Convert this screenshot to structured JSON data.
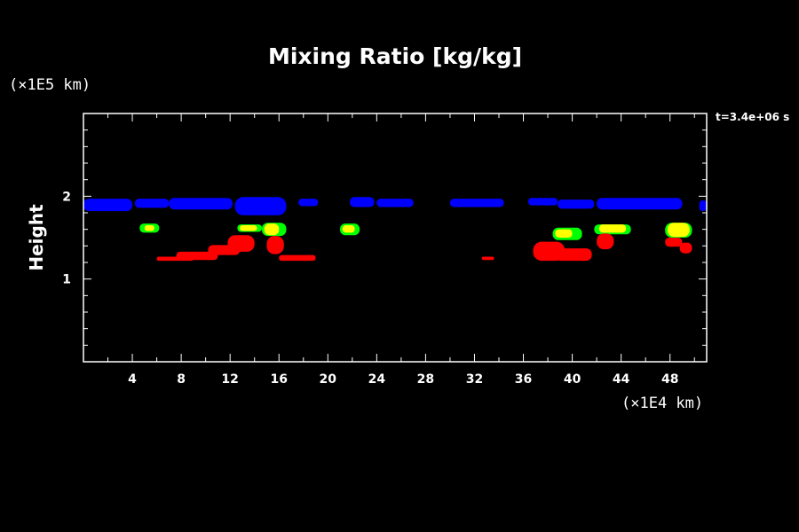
{
  "chart_data": {
    "type": "heatmap",
    "title": "Mixing Ratio [kg/kg]",
    "ylabel": "Height",
    "y_unit_label": "(×1E5 km)",
    "x_unit_label": "(×1E4 km)",
    "time_label": "t=3.4e+06 s",
    "xlim": [
      0,
      51
    ],
    "ylim": [
      0,
      3
    ],
    "x_ticks": [
      4,
      8,
      12,
      16,
      20,
      24,
      28,
      32,
      36,
      40,
      44,
      48
    ],
    "x_tick_labels": [
      "4",
      "8",
      "12",
      "16",
      "20",
      "24",
      "28",
      "32",
      "36",
      "40",
      "44",
      "48"
    ],
    "y_ticks": [
      1,
      2
    ],
    "y_tick_labels": [
      "1",
      "2"
    ],
    "colors": {
      "blue": "#0000ff",
      "green": "#00ff00",
      "yellow": "#ffff00",
      "red": "#ff0000",
      "background": "#000000",
      "axes": "#ffffff"
    },
    "regions": [
      {
        "color": "blue",
        "x": [
          0.0,
          4.0
        ],
        "y": [
          1.82,
          1.97
        ]
      },
      {
        "color": "blue",
        "x": [
          4.2,
          7.0
        ],
        "y": [
          1.86,
          1.97
        ]
      },
      {
        "color": "blue",
        "x": [
          7.0,
          12.2
        ],
        "y": [
          1.84,
          1.98
        ]
      },
      {
        "color": "blue",
        "x": [
          12.4,
          16.6
        ],
        "y": [
          1.77,
          1.99
        ]
      },
      {
        "color": "blue",
        "x": [
          17.6,
          19.2
        ],
        "y": [
          1.88,
          1.97
        ]
      },
      {
        "color": "blue",
        "x": [
          21.8,
          23.8
        ],
        "y": [
          1.87,
          1.99
        ]
      },
      {
        "color": "blue",
        "x": [
          24.0,
          27.0
        ],
        "y": [
          1.87,
          1.97
        ]
      },
      {
        "color": "blue",
        "x": [
          30.0,
          34.4
        ],
        "y": [
          1.87,
          1.97
        ]
      },
      {
        "color": "blue",
        "x": [
          36.4,
          38.8
        ],
        "y": [
          1.89,
          1.98
        ]
      },
      {
        "color": "blue",
        "x": [
          38.8,
          41.8
        ],
        "y": [
          1.85,
          1.96
        ]
      },
      {
        "color": "blue",
        "x": [
          42.0,
          49.0
        ],
        "y": [
          1.84,
          1.98
        ]
      },
      {
        "color": "blue",
        "x": [
          50.4,
          51.0
        ],
        "y": [
          1.82,
          1.95
        ]
      },
      {
        "color": "green",
        "x": [
          4.6,
          6.2
        ],
        "y": [
          1.56,
          1.67
        ]
      },
      {
        "color": "yellow",
        "x": [
          5.0,
          5.8
        ],
        "y": [
          1.58,
          1.65
        ]
      },
      {
        "color": "green",
        "x": [
          12.6,
          14.6
        ],
        "y": [
          1.57,
          1.66
        ]
      },
      {
        "color": "yellow",
        "x": [
          12.8,
          14.2
        ],
        "y": [
          1.58,
          1.65
        ]
      },
      {
        "color": "green",
        "x": [
          14.6,
          16.6
        ],
        "y": [
          1.52,
          1.68
        ]
      },
      {
        "color": "yellow",
        "x": [
          14.8,
          16.0
        ],
        "y": [
          1.53,
          1.67
        ]
      },
      {
        "color": "green",
        "x": [
          21.0,
          22.6
        ],
        "y": [
          1.53,
          1.67
        ]
      },
      {
        "color": "yellow",
        "x": [
          21.2,
          22.2
        ],
        "y": [
          1.56,
          1.65
        ]
      },
      {
        "color": "green",
        "x": [
          38.4,
          40.8
        ],
        "y": [
          1.47,
          1.62
        ]
      },
      {
        "color": "yellow",
        "x": [
          38.6,
          40.0
        ],
        "y": [
          1.5,
          1.6
        ]
      },
      {
        "color": "green",
        "x": [
          41.8,
          44.8
        ],
        "y": [
          1.54,
          1.66
        ]
      },
      {
        "color": "yellow",
        "x": [
          42.2,
          44.4
        ],
        "y": [
          1.56,
          1.66
        ]
      },
      {
        "color": "green",
        "x": [
          47.6,
          49.8
        ],
        "y": [
          1.5,
          1.68
        ]
      },
      {
        "color": "yellow",
        "x": [
          47.8,
          49.6
        ],
        "y": [
          1.51,
          1.68
        ]
      },
      {
        "color": "red",
        "x": [
          6.0,
          9.0
        ],
        "y": [
          1.22,
          1.27
        ]
      },
      {
        "color": "red",
        "x": [
          7.6,
          11.0
        ],
        "y": [
          1.23,
          1.33
        ]
      },
      {
        "color": "red",
        "x": [
          10.2,
          12.8
        ],
        "y": [
          1.29,
          1.41
        ]
      },
      {
        "color": "red",
        "x": [
          11.8,
          14.0
        ],
        "y": [
          1.33,
          1.53
        ]
      },
      {
        "color": "red",
        "x": [
          15.0,
          16.4
        ],
        "y": [
          1.3,
          1.52
        ]
      },
      {
        "color": "red",
        "x": [
          16.0,
          19.0
        ],
        "y": [
          1.22,
          1.29
        ]
      },
      {
        "color": "red",
        "x": [
          32.6,
          33.6
        ],
        "y": [
          1.23,
          1.27
        ]
      },
      {
        "color": "red",
        "x": [
          36.8,
          39.4
        ],
        "y": [
          1.22,
          1.45
        ]
      },
      {
        "color": "red",
        "x": [
          38.6,
          41.6
        ],
        "y": [
          1.22,
          1.37
        ]
      },
      {
        "color": "red",
        "x": [
          42.0,
          43.4
        ],
        "y": [
          1.36,
          1.55
        ]
      },
      {
        "color": "red",
        "x": [
          47.6,
          49.0
        ],
        "y": [
          1.39,
          1.5
        ]
      },
      {
        "color": "red",
        "x": [
          48.8,
          49.8
        ],
        "y": [
          1.31,
          1.44
        ]
      }
    ]
  }
}
